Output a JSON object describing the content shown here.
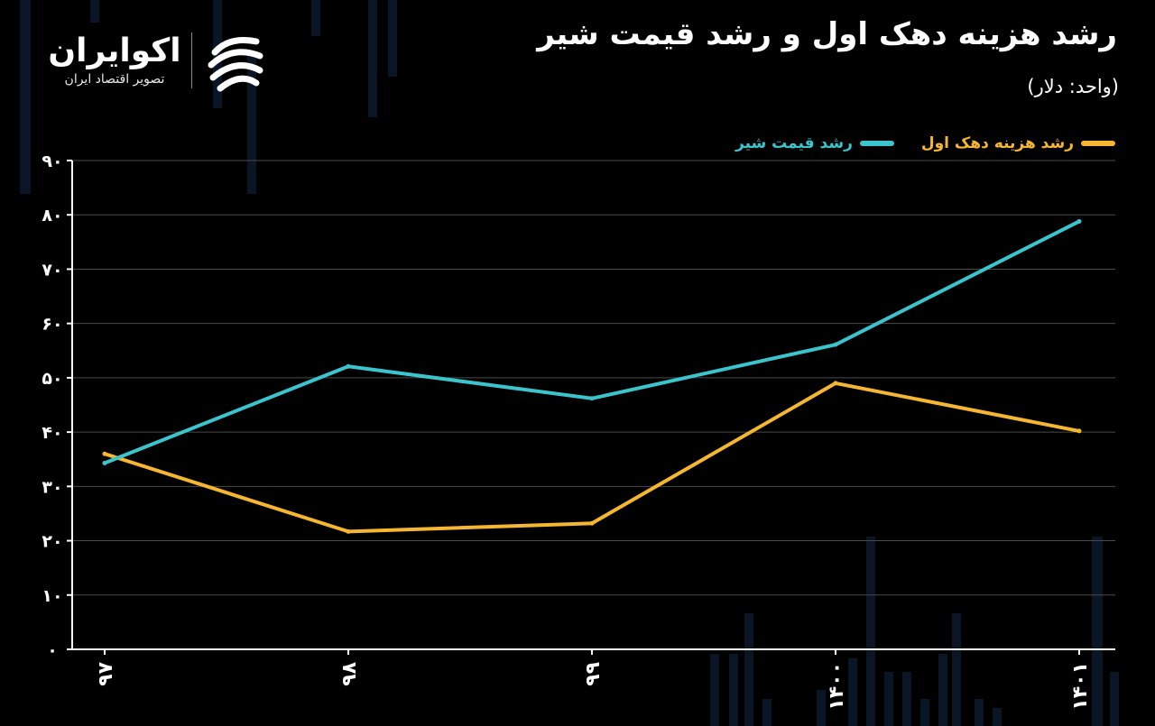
{
  "title": "رشد هزینه دهک اول و رشد قیمت شیر",
  "subtitle": "(واحد: دلار)",
  "brand": {
    "name": "اکوایران",
    "tagline": "تصویر اقتصاد ایران",
    "logo_icon": "ecoiran-swirl-logo"
  },
  "colors": {
    "background": "#000000",
    "decile_series": "#F5B731",
    "milk_series": "#3CC4CC",
    "grid": "#4a4a4a",
    "axis_text": "#ffffff"
  },
  "chart_data": {
    "type": "line",
    "title": "رشد هزینه دهک اول و رشد قیمت شیر",
    "ylabel": "",
    "xlabel": "",
    "categories": [
      "۹۷",
      "۹۸",
      "۹۹",
      "۱۴۰۰",
      "۱۴۰۱"
    ],
    "ylim": [
      0,
      90
    ],
    "yticks": [
      0,
      10,
      20,
      30,
      40,
      50,
      60,
      70,
      80,
      90
    ],
    "ytick_labels": [
      "۰",
      "۱۰",
      "۲۰",
      "۳۰",
      "۴۰",
      "۵۰",
      "۶۰",
      "۷۰",
      "۸۰",
      "۹۰"
    ],
    "grid": true,
    "legend_position": "top-right",
    "series": [
      {
        "name": "رشد هزینه دهک اول",
        "color": "#F5B731",
        "values": [
          36,
          21.7,
          23.2,
          49,
          40.2
        ]
      },
      {
        "name": "رشد قیمت شیر",
        "color": "#3CC4CC",
        "values": [
          34.3,
          52.1,
          46.2,
          56.1,
          78.8
        ]
      }
    ]
  }
}
